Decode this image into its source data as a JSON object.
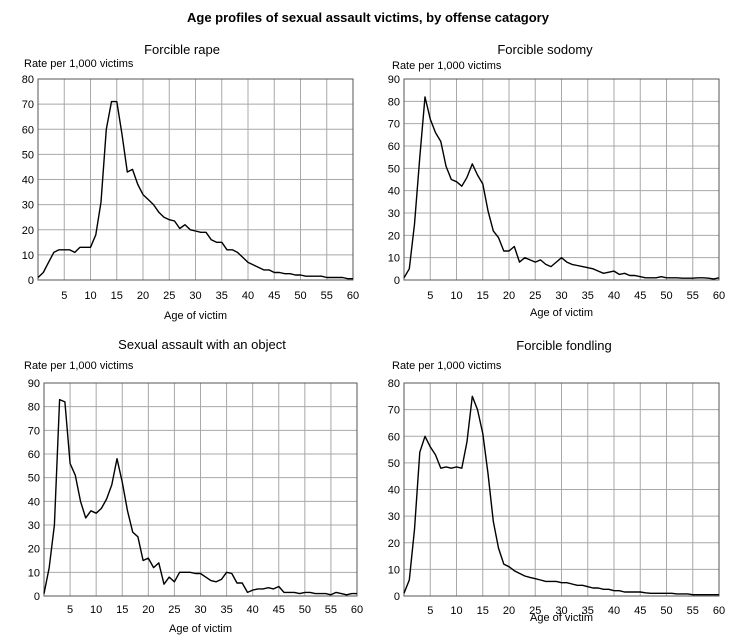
{
  "title": "Age profiles of sexual assault victims, by offense catagory",
  "chart_data": [
    {
      "type": "line",
      "title": "Forcible rape",
      "ylabel": "Rate per 1,000 victims",
      "xlabel": "Age of victim",
      "xlim": [
        0,
        60
      ],
      "ylim": [
        0,
        80
      ],
      "xticks": [
        5,
        10,
        15,
        20,
        25,
        30,
        35,
        40,
        45,
        50,
        55,
        60
      ],
      "yticks": [
        0,
        10,
        20,
        30,
        40,
        50,
        60,
        70,
        80
      ],
      "grid": true,
      "x": [
        0,
        1,
        2,
        3,
        4,
        5,
        6,
        7,
        8,
        9,
        10,
        11,
        12,
        13,
        14,
        15,
        16,
        17,
        18,
        19,
        20,
        21,
        22,
        23,
        24,
        25,
        26,
        27,
        28,
        29,
        30,
        31,
        32,
        33,
        34,
        35,
        36,
        37,
        38,
        39,
        40,
        41,
        42,
        43,
        44,
        45,
        46,
        47,
        48,
        49,
        50,
        51,
        52,
        53,
        54,
        55,
        56,
        57,
        58,
        59,
        60
      ],
      "y": [
        1,
        3,
        7,
        11,
        12,
        12,
        12,
        11,
        13,
        13,
        13,
        18,
        31,
        60,
        71,
        71,
        58,
        43,
        44,
        38,
        34,
        32,
        30,
        27,
        25,
        24,
        23.5,
        20.5,
        22,
        20,
        19.5,
        19,
        19,
        16,
        15,
        15,
        12,
        12,
        11,
        9,
        7,
        6,
        5,
        4,
        4,
        3,
        3,
        2.5,
        2.5,
        2,
        2,
        1.5,
        1.5,
        1.5,
        1.5,
        1,
        1,
        1,
        1,
        0.5,
        0.5
      ]
    },
    {
      "type": "line",
      "title": "Forcible sodomy",
      "ylabel": "Rate per 1,000 victims",
      "xlabel": "Age of victim",
      "xlim": [
        0,
        60
      ],
      "ylim": [
        0,
        90
      ],
      "xticks": [
        5,
        10,
        15,
        20,
        25,
        30,
        35,
        40,
        45,
        50,
        55,
        60
      ],
      "yticks": [
        0,
        10,
        20,
        30,
        40,
        50,
        60,
        70,
        80,
        90
      ],
      "grid": true,
      "x": [
        0,
        1,
        2,
        3,
        4,
        5,
        6,
        7,
        8,
        9,
        10,
        11,
        12,
        13,
        14,
        15,
        16,
        17,
        18,
        19,
        20,
        21,
        22,
        23,
        24,
        25,
        26,
        27,
        28,
        29,
        30,
        31,
        32,
        33,
        34,
        35,
        36,
        37,
        38,
        39,
        40,
        41,
        42,
        43,
        44,
        45,
        46,
        47,
        48,
        49,
        50,
        51,
        52,
        53,
        54,
        55,
        56,
        57,
        58,
        59,
        60
      ],
      "y": [
        1,
        5,
        25,
        55,
        82,
        72,
        66,
        62,
        51,
        45,
        44,
        42,
        46,
        52,
        47,
        43,
        31,
        22,
        19,
        13,
        13,
        15,
        8,
        10,
        9,
        8,
        9,
        7,
        6,
        8,
        10,
        8,
        7,
        6.5,
        6,
        5.5,
        5,
        4,
        3,
        3.5,
        4,
        2.5,
        3,
        2,
        2,
        1.5,
        1,
        1,
        1,
        1.5,
        1,
        1,
        1,
        0.8,
        0.8,
        0.8,
        1,
        1,
        0.8,
        0.5,
        1
      ]
    },
    {
      "type": "line",
      "title": "Sexual assault with an object",
      "ylabel": "Rate per 1,000 victims",
      "xlabel": "Age of victim",
      "xlim": [
        0,
        60
      ],
      "ylim": [
        0,
        90
      ],
      "xticks": [
        5,
        10,
        15,
        20,
        25,
        30,
        35,
        40,
        45,
        50,
        55,
        60
      ],
      "yticks": [
        0,
        10,
        20,
        30,
        40,
        50,
        60,
        70,
        80,
        90
      ],
      "grid": true,
      "x": [
        0,
        1,
        2,
        3,
        4,
        5,
        6,
        7,
        8,
        9,
        10,
        11,
        12,
        13,
        14,
        15,
        16,
        17,
        18,
        19,
        20,
        21,
        22,
        23,
        24,
        25,
        26,
        27,
        28,
        29,
        30,
        31,
        32,
        33,
        34,
        35,
        36,
        37,
        38,
        39,
        40,
        41,
        42,
        43,
        44,
        45,
        46,
        47,
        48,
        49,
        50,
        51,
        52,
        53,
        54,
        55,
        56,
        57,
        58,
        59,
        60
      ],
      "y": [
        1,
        12,
        30,
        83,
        82,
        56,
        51,
        40,
        33,
        36,
        35,
        37,
        41,
        47,
        58,
        48,
        36,
        27,
        25,
        15,
        16,
        12,
        14,
        5,
        8,
        6,
        10,
        10,
        10,
        9.5,
        9.5,
        8,
        6.5,
        6,
        7,
        10,
        9.5,
        5.5,
        5.5,
        1.5,
        2.5,
        3,
        3,
        3.5,
        3,
        4,
        1.5,
        1.5,
        1.5,
        1,
        1.5,
        1.5,
        1,
        1,
        1,
        0.5,
        1.5,
        1,
        0.5,
        1,
        1
      ]
    },
    {
      "type": "line",
      "title": "Forcible fondling",
      "ylabel": "Rate per 1,000 victims",
      "xlabel": "Age of victim",
      "xlim": [
        0,
        60
      ],
      "ylim": [
        0,
        80
      ],
      "xticks": [
        5,
        10,
        15,
        20,
        25,
        30,
        35,
        40,
        45,
        50,
        55,
        60
      ],
      "yticks": [
        0,
        10,
        20,
        30,
        40,
        50,
        60,
        70,
        80
      ],
      "grid": true,
      "x": [
        0,
        1,
        2,
        3,
        4,
        5,
        6,
        7,
        8,
        9,
        10,
        11,
        12,
        13,
        14,
        15,
        16,
        17,
        18,
        19,
        20,
        21,
        22,
        23,
        24,
        25,
        26,
        27,
        28,
        29,
        30,
        31,
        32,
        33,
        34,
        35,
        36,
        37,
        38,
        39,
        40,
        41,
        42,
        43,
        44,
        45,
        46,
        47,
        48,
        49,
        50,
        51,
        52,
        53,
        54,
        55,
        56,
        57,
        58,
        59,
        60
      ],
      "y": [
        1,
        6,
        25,
        54,
        60,
        56,
        53,
        48,
        48.5,
        48,
        48.5,
        48,
        58,
        75,
        70,
        61,
        46,
        28,
        18,
        12,
        11,
        9.5,
        8.5,
        7.5,
        7,
        6.5,
        6,
        5.5,
        5.5,
        5.5,
        5,
        5,
        4.5,
        4,
        4,
        3.5,
        3,
        3,
        2.5,
        2.5,
        2,
        2,
        1.5,
        1.5,
        1.5,
        1.5,
        1.2,
        1,
        1,
        1,
        1,
        1,
        0.8,
        0.8,
        0.8,
        0.5,
        0.5,
        0.5,
        0.5,
        0.5,
        0.5
      ]
    }
  ]
}
